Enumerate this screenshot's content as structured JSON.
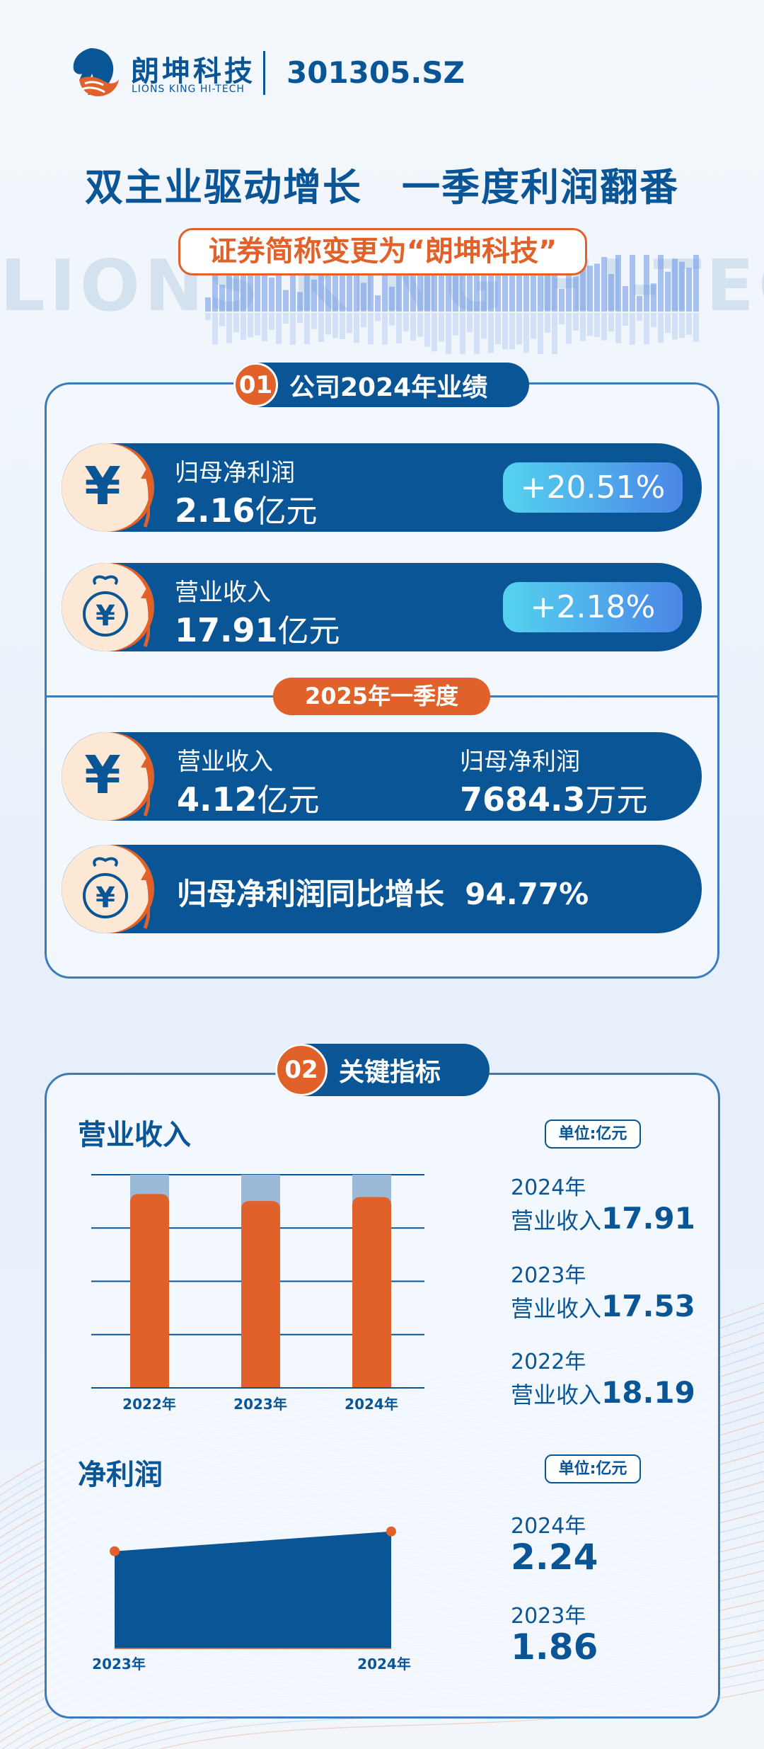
{
  "header": {
    "logo_cn": "朗坤科技",
    "logo_en": "LIONS KING HI-TECH",
    "ticker": "301305.SZ"
  },
  "title": "双主业驱动增长　一季度利润翻番",
  "subtitle": "证券简称变更为“朗坤科技”",
  "watermark": "LIONS KING HI-TECH",
  "colors": {
    "primary": "#0a5596",
    "accent": "#e0622a",
    "badge_gradient": [
      "#55d3f0",
      "#4a86e6"
    ]
  },
  "section1": {
    "num": "01",
    "title": "公司2024年业绩",
    "rows": [
      {
        "icon": "yen-icon",
        "label": "归母净利润",
        "value": "2.16",
        "unit": "亿元",
        "change": "+20.51%"
      },
      {
        "icon": "money-bag-icon",
        "label": "营业收入",
        "value": "17.91",
        "unit": "亿元",
        "change": "+2.18%"
      }
    ],
    "q1_label": "2025年一季度",
    "q1": {
      "revenue_label": "营业收入",
      "revenue_value": "4.12",
      "revenue_unit": "亿元",
      "profit_label": "归母净利润",
      "profit_value": "7684.3",
      "profit_unit": "万元",
      "growth_text": "归母净利润同比增长  94.77%"
    }
  },
  "section2": {
    "num": "02",
    "title": "关键指标",
    "revenue_title": "营业收入",
    "unit": "单位:亿元",
    "revenue_list": [
      {
        "year": "2024年",
        "label": "营业收入",
        "value": "17.91"
      },
      {
        "year": "2023年",
        "label": "营业收入",
        "value": "17.53"
      },
      {
        "year": "2022年",
        "label": "营业收入",
        "value": "18.19"
      }
    ],
    "profit_title": "净利润",
    "profit_list": [
      {
        "year": "2024年",
        "value": "2.24"
      },
      {
        "year": "2023年",
        "value": "1.86"
      }
    ]
  },
  "chart_data": [
    {
      "type": "bar",
      "title": "营业收入",
      "categories": [
        "2022年",
        "2023年",
        "2024年"
      ],
      "values": [
        18.19,
        17.53,
        17.91
      ],
      "unit": "亿元",
      "grid": true
    },
    {
      "type": "area",
      "title": "净利润",
      "categories": [
        "2023年",
        "2024年"
      ],
      "values": [
        1.86,
        2.24
      ],
      "unit": "亿元",
      "grid": false
    }
  ]
}
